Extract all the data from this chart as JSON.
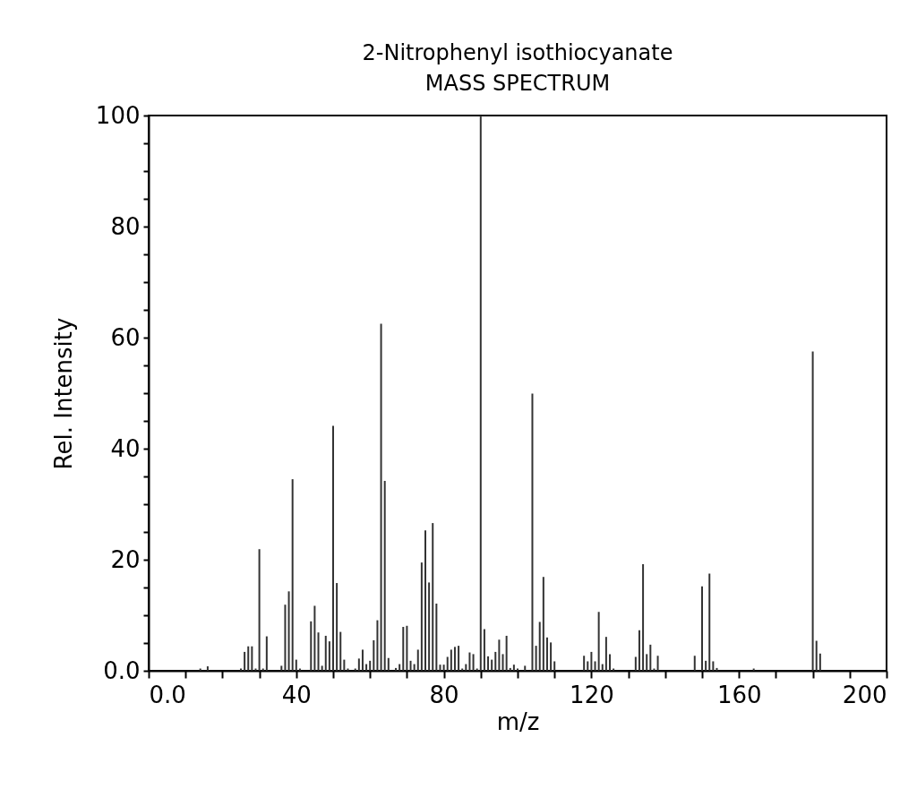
{
  "chart_data": {
    "type": "bar",
    "title": "2-Nitrophenyl isothiocyanate",
    "subtitle": "MASS SPECTRUM",
    "xlabel": "m/z",
    "ylabel": "Rel. Intensity",
    "x": [
      14,
      16,
      25,
      26,
      27,
      28,
      29,
      30,
      31,
      32,
      36,
      37,
      38,
      39,
      40,
      41,
      44,
      45,
      46,
      47,
      48,
      49,
      50,
      51,
      52,
      53,
      54,
      56,
      57,
      58,
      59,
      60,
      61,
      62,
      63,
      64,
      65,
      67,
      68,
      69,
      70,
      71,
      72,
      73,
      74,
      75,
      76,
      77,
      78,
      79,
      80,
      81,
      82,
      83,
      84,
      85,
      86,
      87,
      88,
      89,
      90,
      91,
      92,
      93,
      94,
      95,
      96,
      97,
      98,
      99,
      100,
      102,
      104,
      105,
      106,
      107,
      108,
      109,
      110,
      118,
      119,
      120,
      121,
      122,
      123,
      124,
      125,
      126,
      132,
      133,
      134,
      135,
      136,
      137,
      138,
      148,
      150,
      151,
      152,
      153,
      154,
      164,
      180,
      181,
      182
    ],
    "values": [
      0.4,
      0.8,
      0.4,
      3.4,
      4.4,
      4.4,
      0.4,
      21.9,
      0.4,
      6.2,
      0.9,
      11.9,
      14.3,
      34.5,
      2.0,
      0.4,
      8.9,
      11.7,
      6.9,
      0.9,
      6.3,
      5.3,
      44.1,
      15.8,
      7.0,
      2.0,
      0.4,
      0.4,
      2.2,
      3.8,
      1.2,
      1.8,
      5.5,
      9.1,
      62.5,
      34.2,
      2.3,
      0.5,
      1.2,
      7.9,
      8.1,
      1.8,
      1.2,
      3.8,
      19.5,
      25.3,
      15.9,
      26.6,
      12.1,
      1.1,
      1.1,
      2.5,
      3.8,
      4.3,
      4.5,
      0.4,
      1.2,
      3.3,
      3.0,
      0.4,
      100,
      7.5,
      2.6,
      2.0,
      3.4,
      5.6,
      3.0,
      6.3,
      0.5,
      1.1,
      0.4,
      0.9,
      49.9,
      4.5,
      8.8,
      16.9,
      6.0,
      5.1,
      1.7,
      2.7,
      1.7,
      3.4,
      1.7,
      10.6,
      1.2,
      6.1,
      3.0,
      0.4,
      2.5,
      7.3,
      19.2,
      3.0,
      4.7,
      0.4,
      2.7,
      2.7,
      15.2,
      1.8,
      17.5,
      1.7,
      0.5,
      0.4,
      57.5,
      5.4,
      3.1
    ],
    "color": "#333333",
    "xlim": [
      0,
      200
    ],
    "xticks": [
      {
        "value": 0,
        "label": "0.0"
      },
      {
        "value": 10,
        "label": null
      },
      {
        "value": 20,
        "label": null
      },
      {
        "value": 30,
        "label": null
      },
      40,
      {
        "value": 50,
        "label": null
      },
      {
        "value": 60,
        "label": null
      },
      {
        "value": 70,
        "label": null
      },
      80,
      {
        "value": 90,
        "label": null
      },
      {
        "value": 100,
        "label": null
      },
      {
        "value": 110,
        "label": null
      },
      120,
      {
        "value": 130,
        "label": null
      },
      {
        "value": 140,
        "label": null
      },
      {
        "value": 150,
        "label": null
      },
      160,
      {
        "value": 170,
        "label": null
      },
      {
        "value": 180,
        "label": null
      },
      {
        "value": 190,
        "label": null
      },
      200
    ],
    "ylim": [
      0,
      100
    ],
    "yticks": [
      {
        "value": 0,
        "label": "0.0"
      },
      {
        "value": 5,
        "label": null
      },
      {
        "value": 10,
        "label": null
      },
      {
        "value": 15,
        "label": null
      },
      20,
      {
        "value": 25,
        "label": null
      },
      {
        "value": 30,
        "label": null
      },
      {
        "value": 35,
        "label": null
      },
      40,
      {
        "value": 45,
        "label": null
      },
      {
        "value": 50,
        "label": null
      },
      {
        "value": 55,
        "label": null
      },
      60,
      {
        "value": 65,
        "label": null
      },
      {
        "value": 70,
        "label": null
      },
      {
        "value": 75,
        "label": null
      },
      80,
      {
        "value": 85,
        "label": null
      },
      {
        "value": 90,
        "label": null
      },
      {
        "value": 95,
        "label": null
      },
      100
    ],
    "grid": false
  }
}
